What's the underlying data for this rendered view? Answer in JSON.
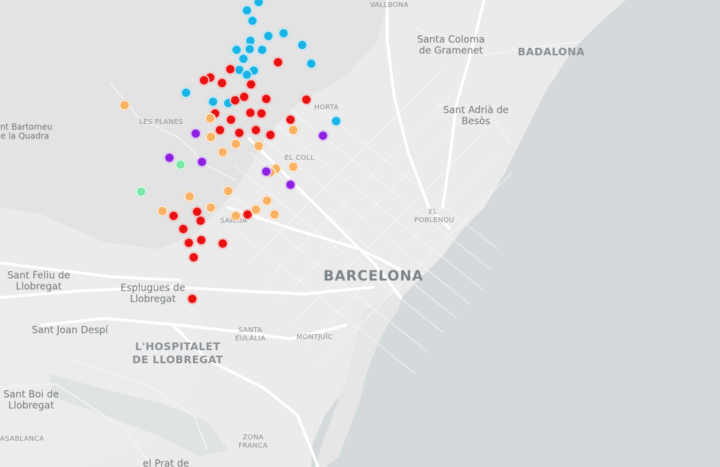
{
  "colors": {
    "sea": "#d4dadc",
    "land": "#ebebeb",
    "road": "#ffffff",
    "markers": {
      "red": "#e81010",
      "blue": "#19b4e6",
      "orange": "#f9b164",
      "purple": "#8d20e2",
      "green": "#7ce8a8"
    }
  },
  "labels": {
    "barcelona": "BARCELONA",
    "badalona": "BADALONA",
    "hospitalet_1": "L'HOSPITALET",
    "hospitalet_2": "DE LLOBREGAT",
    "santa_coloma_1": "Santa Coloma",
    "santa_coloma_2": "de Gramenet",
    "sant_adria_1": "Sant Adrià de",
    "sant_adria_2": "Besòs",
    "sant_feliu_1": "Sant Feliu de",
    "sant_feliu_2": "Llobregat",
    "esplugues_1": "Esplugues de",
    "esplugues_2": "Llobregat",
    "sant_joan": "Sant Joan Despí",
    "sant_boi_1": "Sant Boi de",
    "sant_boi_2": "Llobregat",
    "sant_bartomeu_1": "nt Bartomeu",
    "sant_bartomeu_2": "e la Quadra",
    "prat": "el Prat de",
    "casablanca": "ASABLANCA",
    "les_planes": "LES PLANES",
    "vallbona": "VALLBONA",
    "horta": "HORTA",
    "el_coll": "EL COLL",
    "sarria": "SARRIÀ",
    "poblenou_1": "EL",
    "poblenou_2": "POBLENOU",
    "santa_eulalia_1": "SANTA",
    "santa_eulalia_2": "EULÀLIA",
    "montjuic": "MONTJUÏC",
    "zona_franca_1": "ZONA",
    "zona_franca_2": "FRANCA"
  },
  "markers": [
    {
      "lat": 41.4575,
      "lng": 2.1924,
      "color": "blue"
    },
    {
      "lat": 41.4537,
      "lng": 2.1854,
      "color": "blue"
    },
    {
      "lat": 41.4492,
      "lng": 2.1889,
      "color": "blue"
    },
    {
      "lat": 41.4434,
      "lng": 2.2082,
      "color": "blue"
    },
    {
      "lat": 41.4422,
      "lng": 2.1985,
      "color": "blue"
    },
    {
      "lat": 41.4402,
      "lng": 2.1873,
      "color": "blue"
    },
    {
      "lat": 41.4383,
      "lng": 2.2202,
      "color": "blue"
    },
    {
      "lat": 41.4361,
      "lng": 2.1787,
      "color": "blue"
    },
    {
      "lat": 41.4362,
      "lng": 2.1868,
      "color": "blue"
    },
    {
      "lat": 41.4359,
      "lng": 2.1948,
      "color": "blue"
    },
    {
      "lat": 41.4318,
      "lng": 2.1832,
      "color": "blue"
    },
    {
      "lat": 41.4297,
      "lng": 2.2256,
      "color": "blue"
    },
    {
      "lat": 41.4268,
      "lng": 2.1804,
      "color": "blue"
    },
    {
      "lat": 41.4267,
      "lng": 2.1895,
      "color": "blue"
    },
    {
      "lat": 41.4246,
      "lng": 2.1851,
      "color": "blue"
    },
    {
      "lat": 41.4166,
      "lng": 2.1471,
      "color": "blue"
    },
    {
      "lat": 41.4127,
      "lng": 2.1638,
      "color": "blue"
    },
    {
      "lat": 41.4119,
      "lng": 2.1734,
      "color": "blue"
    },
    {
      "lat": 41.4039,
      "lng": 2.2412,
      "color": "blue"
    },
    {
      "lat": 41.4304,
      "lng": 2.2047,
      "color": "red"
    },
    {
      "lat": 41.4271,
      "lng": 2.1749,
      "color": "red"
    },
    {
      "lat": 41.4236,
      "lng": 2.1621,
      "color": "red"
    },
    {
      "lat": 41.4222,
      "lng": 2.1583,
      "color": "red"
    },
    {
      "lat": 41.4211,
      "lng": 2.1694,
      "color": "red"
    },
    {
      "lat": 41.4203,
      "lng": 2.1879,
      "color": "red"
    },
    {
      "lat": 41.4146,
      "lng": 2.1836,
      "color": "red"
    },
    {
      "lat": 41.4138,
      "lng": 2.1976,
      "color": "red"
    },
    {
      "lat": 41.4131,
      "lng": 2.1777,
      "color": "red"
    },
    {
      "lat": 41.4134,
      "lng": 2.2226,
      "color": "red"
    },
    {
      "lat": 41.4074,
      "lng": 2.1652,
      "color": "red"
    },
    {
      "lat": 41.4077,
      "lng": 2.1872,
      "color": "red"
    },
    {
      "lat": 41.4071,
      "lng": 2.1943,
      "color": "red"
    },
    {
      "lat": 41.4045,
      "lng": 2.1752,
      "color": "red"
    },
    {
      "lat": 41.4045,
      "lng": 2.2126,
      "color": "red"
    },
    {
      "lat": 41.3996,
      "lng": 2.1681,
      "color": "red"
    },
    {
      "lat": 41.3985,
      "lng": 2.1805,
      "color": "red"
    },
    {
      "lat": 41.3997,
      "lng": 2.1908,
      "color": "red"
    },
    {
      "lat": 41.3975,
      "lng": 2.1999,
      "color": "red"
    },
    {
      "lat": 41.3628,
      "lng": 2.1539,
      "color": "red"
    },
    {
      "lat": 41.3611,
      "lng": 2.1393,
      "color": "red"
    },
    {
      "lat": 41.3588,
      "lng": 2.1561,
      "color": "red"
    },
    {
      "lat": 41.3617,
      "lng": 2.1858,
      "color": "red"
    },
    {
      "lat": 41.355,
      "lng": 2.1451,
      "color": "red"
    },
    {
      "lat": 41.3502,
      "lng": 2.1565,
      "color": "red"
    },
    {
      "lat": 41.3489,
      "lng": 2.1487,
      "color": "red"
    },
    {
      "lat": 41.3485,
      "lng": 2.1701,
      "color": "red"
    },
    {
      "lat": 41.3421,
      "lng": 2.1519,
      "color": "red"
    },
    {
      "lat": 41.3234,
      "lng": 2.1508,
      "color": "red"
    },
    {
      "lat": 41.4109,
      "lng": 2.1084,
      "color": "orange"
    },
    {
      "lat": 41.405,
      "lng": 2.162,
      "color": "orange"
    },
    {
      "lat": 41.3999,
      "lng": 2.2145,
      "color": "orange"
    },
    {
      "lat": 41.3966,
      "lng": 2.1625,
      "color": "orange"
    },
    {
      "lat": 41.3934,
      "lng": 2.1781,
      "color": "orange"
    },
    {
      "lat": 41.3926,
      "lng": 2.1927,
      "color": "orange"
    },
    {
      "lat": 41.3896,
      "lng": 2.17,
      "color": "orange"
    },
    {
      "lat": 41.3833,
      "lng": 2.2144,
      "color": "orange"
    },
    {
      "lat": 41.3822,
      "lng": 2.2036,
      "color": "orange"
    },
    {
      "lat": 41.3808,
      "lng": 2.1999,
      "color": "orange"
    },
    {
      "lat": 41.3723,
      "lng": 2.1736,
      "color": "orange"
    },
    {
      "lat": 41.3697,
      "lng": 2.1493,
      "color": "orange"
    },
    {
      "lat": 41.3679,
      "lng": 2.1979,
      "color": "orange"
    },
    {
      "lat": 41.3649,
      "lng": 2.1628,
      "color": "orange"
    },
    {
      "lat": 41.3637,
      "lng": 2.1907,
      "color": "orange"
    },
    {
      "lat": 41.3617,
      "lng": 2.2024,
      "color": "orange"
    },
    {
      "lat": 41.3632,
      "lng": 2.132,
      "color": "orange"
    },
    {
      "lat": 41.3609,
      "lng": 2.1782,
      "color": "orange"
    },
    {
      "lat": 41.3982,
      "lng": 2.1531,
      "color": "purple"
    },
    {
      "lat": 41.3974,
      "lng": 2.2331,
      "color": "purple"
    },
    {
      "lat": 41.3874,
      "lng": 2.1366,
      "color": "purple"
    },
    {
      "lat": 41.3855,
      "lng": 2.1571,
      "color": "purple"
    },
    {
      "lat": 41.3811,
      "lng": 2.1973,
      "color": "purple"
    },
    {
      "lat": 41.3752,
      "lng": 2.2127,
      "color": "purple"
    },
    {
      "lat": 41.3842,
      "lng": 2.1435,
      "color": "green"
    },
    {
      "lat": 41.3719,
      "lng": 2.1186,
      "color": "green"
    }
  ]
}
